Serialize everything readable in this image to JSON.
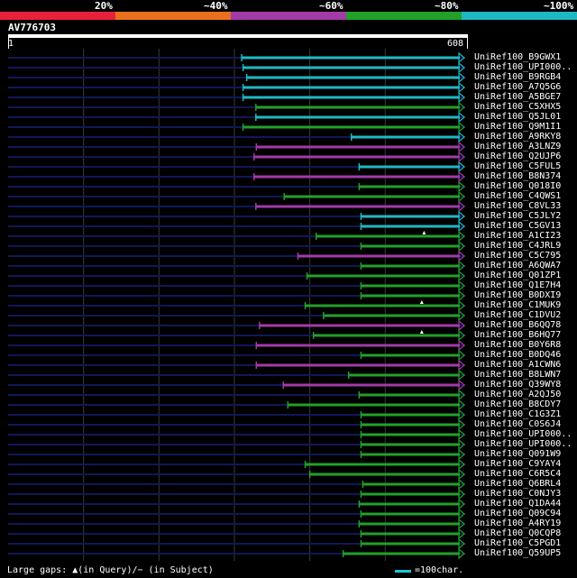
{
  "legend": {
    "segments": [
      {
        "color": "#e8203a",
        "label": "20%"
      },
      {
        "color": "#e8701e",
        "label": "~40%"
      },
      {
        "color": "#a23aa8",
        "label": "~60%"
      },
      {
        "color": "#22a02a",
        "label": "~80%"
      },
      {
        "color": "#1eb8c4",
        "label": "~100%"
      }
    ]
  },
  "query": {
    "id": "AV776703",
    "start": "1",
    "end": "608"
  },
  "colors": {
    "background": "#000000",
    "gridline": "#3a3a3a",
    "unaligned_line": "#101858",
    "gap_mark": "#ff66ff"
  },
  "hits": [
    {
      "name": "UniRef100_B9GWX1",
      "start_pct": 0.511,
      "identity": "~100%",
      "query_gaps": []
    },
    {
      "name": "UniRef100_UPI000..",
      "start_pct": 0.514,
      "identity": "~100%",
      "query_gaps": []
    },
    {
      "name": "UniRef100_B9RGB4",
      "start_pct": 0.522,
      "identity": "~100%",
      "query_gaps": []
    },
    {
      "name": "UniRef100_A7Q5G6",
      "start_pct": 0.514,
      "identity": "~100%",
      "query_gaps": []
    },
    {
      "name": "UniRef100_A5BGE7",
      "start_pct": 0.514,
      "identity": "~100%",
      "query_gaps": []
    },
    {
      "name": "UniRef100_C5XHX5",
      "start_pct": 0.542,
      "identity": "~80%",
      "query_gaps": []
    },
    {
      "name": "UniRef100_Q5JL01",
      "start_pct": 0.542,
      "identity": "~100%",
      "query_gaps": []
    },
    {
      "name": "UniRef100_Q9M1I1",
      "start_pct": 0.514,
      "identity": "~80%",
      "query_gaps": []
    },
    {
      "name": "UniRef100_A9RKY8",
      "start_pct": 0.751,
      "identity": "~100%",
      "query_gaps": []
    },
    {
      "name": "UniRef100_A3LNZ9",
      "start_pct": 0.543,
      "identity": "~60%",
      "query_gaps": []
    },
    {
      "name": "UniRef100_Q2UJP6",
      "start_pct": 0.538,
      "identity": "~60%",
      "query_gaps": []
    },
    {
      "name": "UniRef100_C5FUL5",
      "start_pct": 0.768,
      "identity": "~100%",
      "query_gaps": []
    },
    {
      "name": "UniRef100_B8N374",
      "start_pct": 0.538,
      "identity": "~60%",
      "query_gaps": []
    },
    {
      "name": "UniRef100_Q018I0",
      "start_pct": 0.768,
      "identity": "~80%",
      "query_gaps": []
    },
    {
      "name": "UniRef100_C4QWS1",
      "start_pct": 0.604,
      "identity": "~80%",
      "query_gaps": []
    },
    {
      "name": "UniRef100_C8VL33",
      "start_pct": 0.542,
      "identity": "~60%",
      "query_gaps": []
    },
    {
      "name": "UniRef100_C5JLY2",
      "start_pct": 0.772,
      "identity": "~100%",
      "query_gaps": []
    },
    {
      "name": "UniRef100_C5GV13",
      "start_pct": 0.772,
      "identity": "~100%",
      "query_gaps": []
    },
    {
      "name": "UniRef100_A1CI23",
      "start_pct": 0.674,
      "identity": "~80%",
      "query_gaps": [
        0.91
      ]
    },
    {
      "name": "UniRef100_C4JRL9",
      "start_pct": 0.772,
      "identity": "~80%",
      "query_gaps": []
    },
    {
      "name": "UniRef100_C5C795",
      "start_pct": 0.634,
      "identity": "~60%",
      "query_gaps": []
    },
    {
      "name": "UniRef100_A6QWA7",
      "start_pct": 0.772,
      "identity": "~80%",
      "query_gaps": []
    },
    {
      "name": "UniRef100_Q01ZP1",
      "start_pct": 0.654,
      "identity": "~80%",
      "query_gaps": []
    },
    {
      "name": "UniRef100_Q1E7H4",
      "start_pct": 0.772,
      "identity": "~80%",
      "query_gaps": []
    },
    {
      "name": "UniRef100_B0DXI9",
      "start_pct": 0.772,
      "identity": "~80%",
      "query_gaps": []
    },
    {
      "name": "UniRef100_C1MUK9",
      "start_pct": 0.65,
      "identity": "~80%",
      "query_gaps": [
        0.905
      ]
    },
    {
      "name": "UniRef100_C1DVU2",
      "start_pct": 0.69,
      "identity": "~80%",
      "query_gaps": []
    },
    {
      "name": "UniRef100_B6QQ78",
      "start_pct": 0.55,
      "identity": "~60%",
      "query_gaps": []
    },
    {
      "name": "UniRef100_B6HQ77",
      "start_pct": 0.668,
      "identity": "~80%",
      "query_gaps": [
        0.905
      ]
    },
    {
      "name": "UniRef100_B0Y6R8",
      "start_pct": 0.543,
      "identity": "~60%",
      "query_gaps": []
    },
    {
      "name": "UniRef100_B0DQ46",
      "start_pct": 0.772,
      "identity": "~80%",
      "query_gaps": []
    },
    {
      "name": "UniRef100_A1CWN6",
      "start_pct": 0.543,
      "identity": "~60%",
      "query_gaps": []
    },
    {
      "name": "UniRef100_B8LWN7",
      "start_pct": 0.745,
      "identity": "~80%",
      "query_gaps": []
    },
    {
      "name": "UniRef100_Q39WY8",
      "start_pct": 0.602,
      "identity": "~60%",
      "query_gaps": []
    },
    {
      "name": "UniRef100_A2QJ50",
      "start_pct": 0.768,
      "identity": "~80%",
      "query_gaps": []
    },
    {
      "name": "UniRef100_B8CDY7",
      "start_pct": 0.612,
      "identity": "~80%",
      "query_gaps": []
    },
    {
      "name": "UniRef100_C1G3Z1",
      "start_pct": 0.772,
      "identity": "~80%",
      "query_gaps": []
    },
    {
      "name": "UniRef100_C0S6J4",
      "start_pct": 0.772,
      "identity": "~80%",
      "query_gaps": []
    },
    {
      "name": "UniRef100_UPI000..",
      "start_pct": 0.772,
      "identity": "~80%",
      "query_gaps": []
    },
    {
      "name": "UniRef100_UPI000..",
      "start_pct": 0.772,
      "identity": "~80%",
      "query_gaps": []
    },
    {
      "name": "UniRef100_Q091W9",
      "start_pct": 0.772,
      "identity": "~80%",
      "query_gaps": []
    },
    {
      "name": "UniRef100_C9YAY4",
      "start_pct": 0.65,
      "identity": "~80%",
      "query_gaps": []
    },
    {
      "name": "UniRef100_C6R5C4",
      "start_pct": 0.66,
      "identity": "~80%",
      "query_gaps": []
    },
    {
      "name": "UniRef100_Q6BRL4",
      "start_pct": 0.776,
      "identity": "~80%",
      "query_gaps": []
    },
    {
      "name": "UniRef100_C0NJY3",
      "start_pct": 0.772,
      "identity": "~80%",
      "query_gaps": []
    },
    {
      "name": "UniRef100_Q1DA44",
      "start_pct": 0.768,
      "identity": "~80%",
      "query_gaps": []
    },
    {
      "name": "UniRef100_Q09C94",
      "start_pct": 0.772,
      "identity": "~80%",
      "query_gaps": []
    },
    {
      "name": "UniRef100_A4RY19",
      "start_pct": 0.768,
      "identity": "~80%",
      "query_gaps": []
    },
    {
      "name": "UniRef100_Q0CQP8",
      "start_pct": 0.772,
      "identity": "~80%",
      "query_gaps": []
    },
    {
      "name": "UniRef100_C5PGD1",
      "start_pct": 0.772,
      "identity": "~80%",
      "query_gaps": []
    },
    {
      "name": "UniRef100_Q59UP5",
      "start_pct": 0.733,
      "identity": "~80%",
      "query_gaps": []
    }
  ],
  "footer": {
    "gaps_text": "Large gaps: ▲(in Query)/− (in Subject)",
    "scale_text": "=100char."
  }
}
